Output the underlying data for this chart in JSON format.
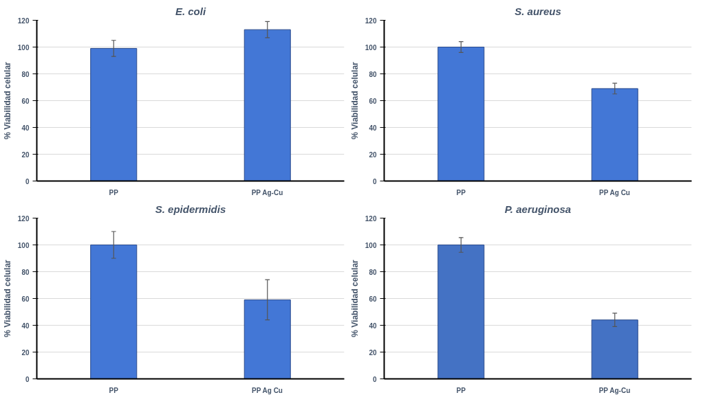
{
  "chart_data": [
    {
      "type": "bar",
      "title": "E. coli",
      "ylabel": "% Viabilidad celular",
      "categories": [
        "PP",
        "PP Ag-Cu"
      ],
      "values": [
        99,
        113
      ],
      "errors": [
        6,
        6
      ],
      "color": "#4377d6",
      "ylim": [
        0,
        120
      ],
      "yticks": [
        0,
        20,
        40,
        60,
        80,
        100,
        120
      ],
      "grid": "y"
    },
    {
      "type": "bar",
      "title": "S. aureus",
      "ylabel": "% Viabilidad celular",
      "categories": [
        "PP",
        "PP Ag Cu"
      ],
      "values": [
        100,
        69
      ],
      "errors": [
        4,
        4
      ],
      "color": "#4377d6",
      "ylim": [
        0,
        120
      ],
      "yticks": [
        0,
        20,
        40,
        60,
        80,
        100,
        120
      ],
      "grid": "y"
    },
    {
      "type": "bar",
      "title": "S. epidermidis",
      "ylabel": "% Viabilidad celular",
      "categories": [
        "PP",
        "PP Ag Cu"
      ],
      "values": [
        100,
        59
      ],
      "errors": [
        10,
        15
      ],
      "color": "#4377d6",
      "ylim": [
        0,
        120
      ],
      "yticks": [
        0,
        20,
        40,
        60,
        80,
        100,
        120
      ],
      "grid": "y"
    },
    {
      "type": "bar",
      "title": "P. aeruginosa",
      "ylabel": "% Viabilidad celular",
      "categories": [
        "PP",
        "PP Ag-Cu"
      ],
      "values": [
        100,
        44
      ],
      "errors": [
        5.5,
        5
      ],
      "color": "#4472c4",
      "ylim": [
        0,
        120
      ],
      "yticks": [
        0,
        20,
        40,
        60,
        80,
        100,
        120
      ],
      "grid": "y"
    }
  ]
}
